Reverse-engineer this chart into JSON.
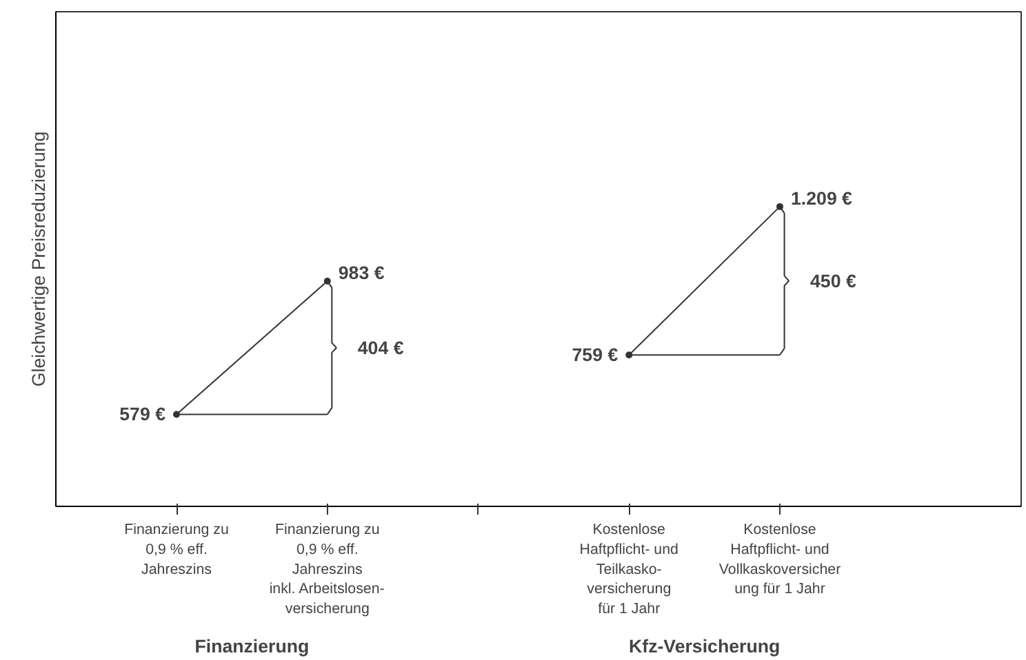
{
  "chart_data": {
    "type": "line",
    "ylabel": "Gleichwertige Preisreduzierung",
    "categories": [
      "Finanzierung zu\n0,9 % eff.\nJahreszins",
      "Finanzierung zu\n0,9 % eff.\nJahreszins\ninkl. Arbeitslosen-\nversicherung",
      null,
      "Kostenlose\nHaftpflicht- und\nTeilkasko-\nversicherung\nfür 1 Jahr",
      "Kostenlose\nHaftpflicht- und\nVollkaskoversicher\nung für 1 Jahr"
    ],
    "series": [
      {
        "color": "#333333",
        "values": [
          579,
          983,
          null,
          null,
          null
        ],
        "value_labels": [
          "579 €",
          "983 €",
          null,
          null,
          null
        ]
      },
      {
        "color": "#333333",
        "values": [
          null,
          null,
          null,
          759,
          1209
        ],
        "value_labels": [
          null,
          null,
          null,
          "759 €",
          "1.209 €"
        ]
      }
    ],
    "ylim": [
      300,
      1800
    ],
    "marker": "circle",
    "line_style": "solid",
    "grid": false,
    "annotations": [
      "Finanzierung",
      "Kfz-Versicherung",
      "404 €",
      "450 €"
    ]
  }
}
